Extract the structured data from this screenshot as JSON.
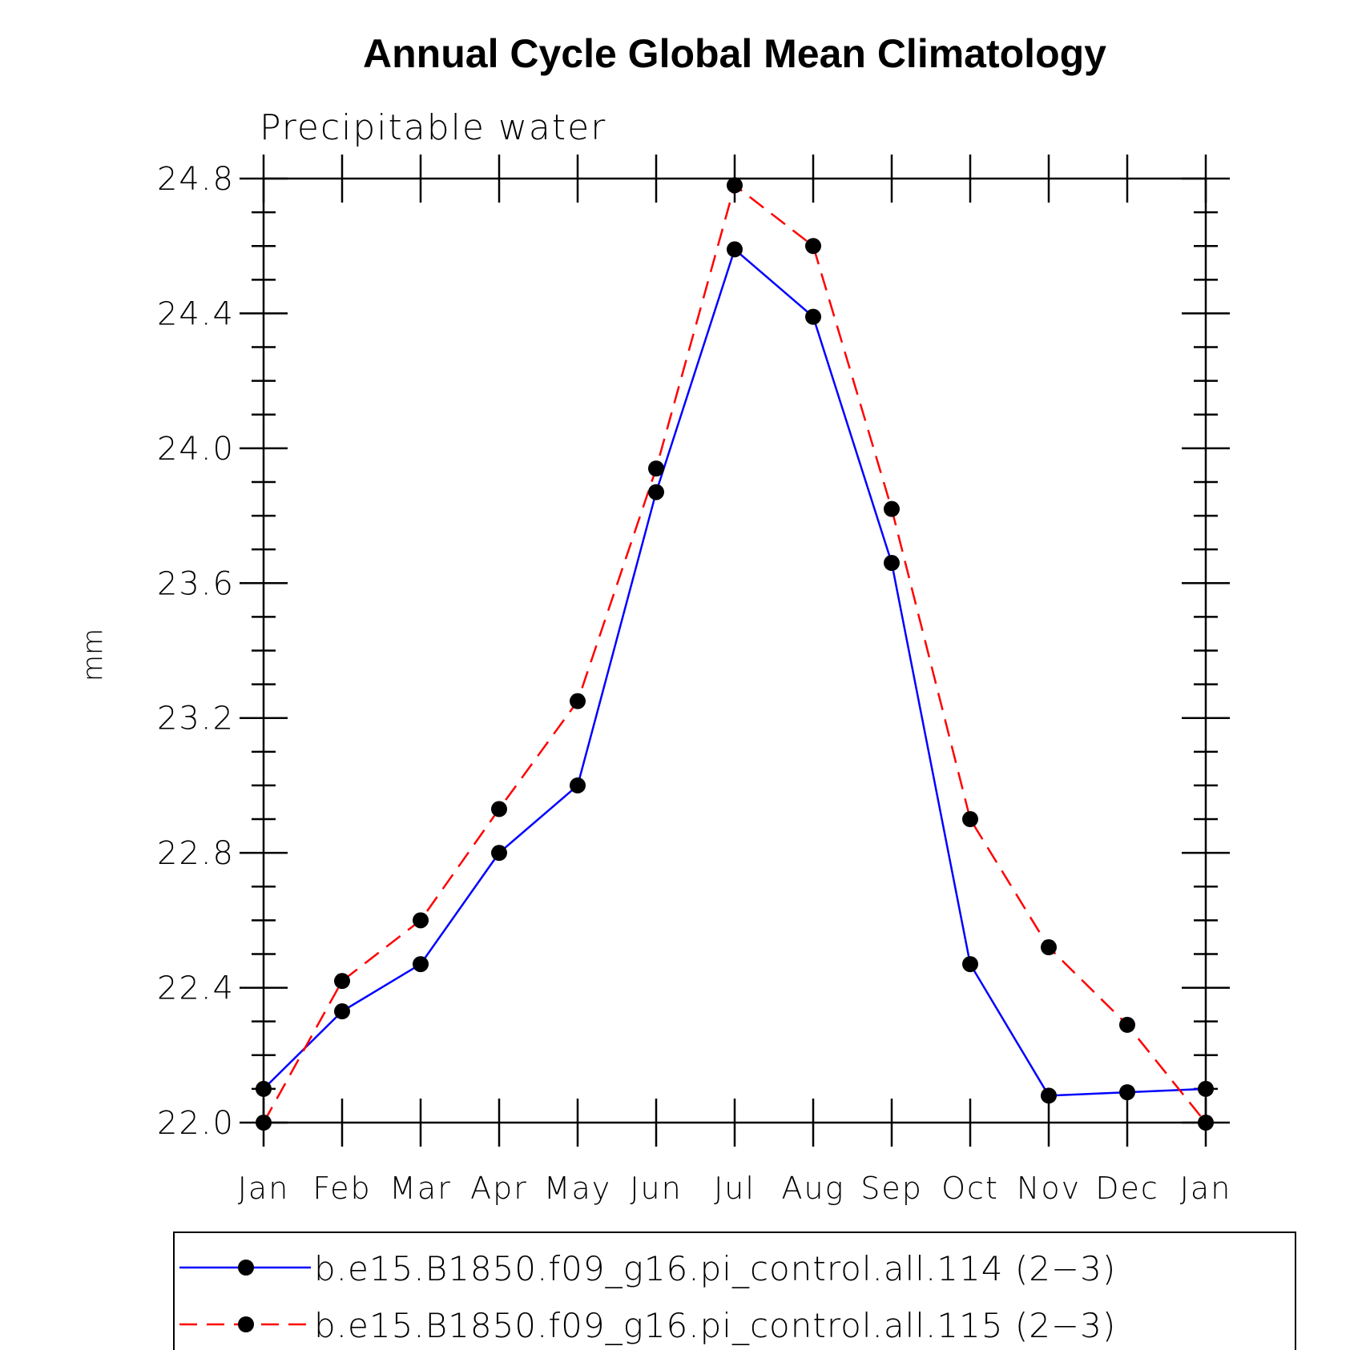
{
  "chart_data": {
    "type": "line",
    "title": "Annual Cycle Global Mean Climatology",
    "subtitle": "Precipitable water",
    "xlabel": "",
    "ylabel": "mm",
    "categories": [
      "Jan",
      "Feb",
      "Mar",
      "Apr",
      "May",
      "Jun",
      "Jul",
      "Aug",
      "Sep",
      "Oct",
      "Nov",
      "Dec",
      "Jan"
    ],
    "ylim": [
      22.0,
      24.8
    ],
    "yticks": [
      "22.0",
      "22.4",
      "22.8",
      "23.2",
      "23.6",
      "24.0",
      "24.4",
      "24.8"
    ],
    "grid": false,
    "legend_position": "bottom",
    "series": [
      {
        "name": "b.e15.B1850.f09_g16.pi_control.all.114 (2−3)",
        "color": "#0000ff",
        "line_style": "solid",
        "marker": "filled-circle",
        "values": [
          22.1,
          22.33,
          22.47,
          22.8,
          23.0,
          23.87,
          24.59,
          24.39,
          23.66,
          22.47,
          22.08,
          22.09,
          22.1
        ]
      },
      {
        "name": "b.e15.B1850.f09_g16.pi_control.all.115 (2−3)",
        "color": "#ff0000",
        "line_style": "dashed",
        "marker": "filled-circle",
        "values": [
          22.0,
          22.42,
          22.6,
          22.93,
          23.25,
          23.94,
          24.78,
          24.6,
          23.82,
          22.9,
          22.52,
          22.29,
          22.0
        ]
      }
    ]
  }
}
